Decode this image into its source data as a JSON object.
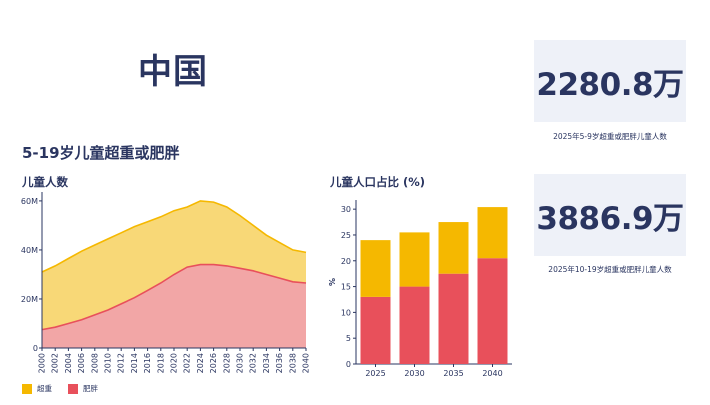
{
  "header": {
    "country": "中国"
  },
  "section_title": "5-19岁儿童超重或肥胖",
  "stats": [
    {
      "value": "2280.8万",
      "caption": "2025年5-9岁超重或肥胖儿童人数"
    },
    {
      "value": "3886.9万",
      "caption": "2025年10-19岁超重或肥胖儿童人数"
    }
  ],
  "colors": {
    "overweight": "#f5b800",
    "obese": "#e8505b",
    "overweight_fill": "#f8d877",
    "obese_fill": "#f2a6a6"
  },
  "legend": [
    {
      "name": "超重",
      "color": "#f5b800"
    },
    {
      "name": "肥胖",
      "color": "#e8505b"
    }
  ],
  "chart_data": [
    {
      "type": "area",
      "title": "儿童人数",
      "stacked": true,
      "x": [
        2000,
        2002,
        2004,
        2006,
        2008,
        2010,
        2012,
        2014,
        2016,
        2018,
        2020,
        2022,
        2024,
        2026,
        2028,
        2030,
        2032,
        2034,
        2036,
        2038,
        2040
      ],
      "x_tick_labels": [
        "2000",
        "2002",
        "2004",
        "2006",
        "2008",
        "2010",
        "2012",
        "2014",
        "2016",
        "2018",
        "2020",
        "2022",
        "2024",
        "2026",
        "2028",
        "2030",
        "2032",
        "2034",
        "2036",
        "2038",
        "2040"
      ],
      "y_ticks": [
        0,
        20,
        40,
        60
      ],
      "y_tick_labels": [
        "0",
        "20M",
        "40M",
        "60M"
      ],
      "ylim": [
        0,
        62
      ],
      "series": [
        {
          "name": "肥胖",
          "values": [
            7.5,
            8.5,
            10,
            11.5,
            13.5,
            15.5,
            18,
            20.5,
            23.5,
            26.5,
            30,
            33,
            34,
            34,
            33.5,
            32.5,
            31.5,
            30,
            28.5,
            27,
            26.5
          ]
        },
        {
          "name": "超重",
          "values": [
            23.5,
            25,
            26.5,
            28,
            28.5,
            29,
            29,
            29,
            28,
            27,
            26,
            24.5,
            26,
            25.5,
            24,
            21.5,
            18.5,
            16,
            14.5,
            13,
            12.5
          ]
        }
      ]
    },
    {
      "type": "bar",
      "title": "儿童人口占比 (%)",
      "stacked": true,
      "ylabel": "%",
      "categories": [
        "2025",
        "2030",
        "2035",
        "2040"
      ],
      "y_ticks": [
        0,
        5,
        10,
        15,
        20,
        25,
        30
      ],
      "ylim": [
        0,
        31
      ],
      "series": [
        {
          "name": "肥胖",
          "values": [
            13,
            15,
            17.5,
            20.5
          ]
        },
        {
          "name": "超重",
          "values": [
            11,
            10.5,
            10,
            9.9
          ]
        }
      ]
    }
  ]
}
